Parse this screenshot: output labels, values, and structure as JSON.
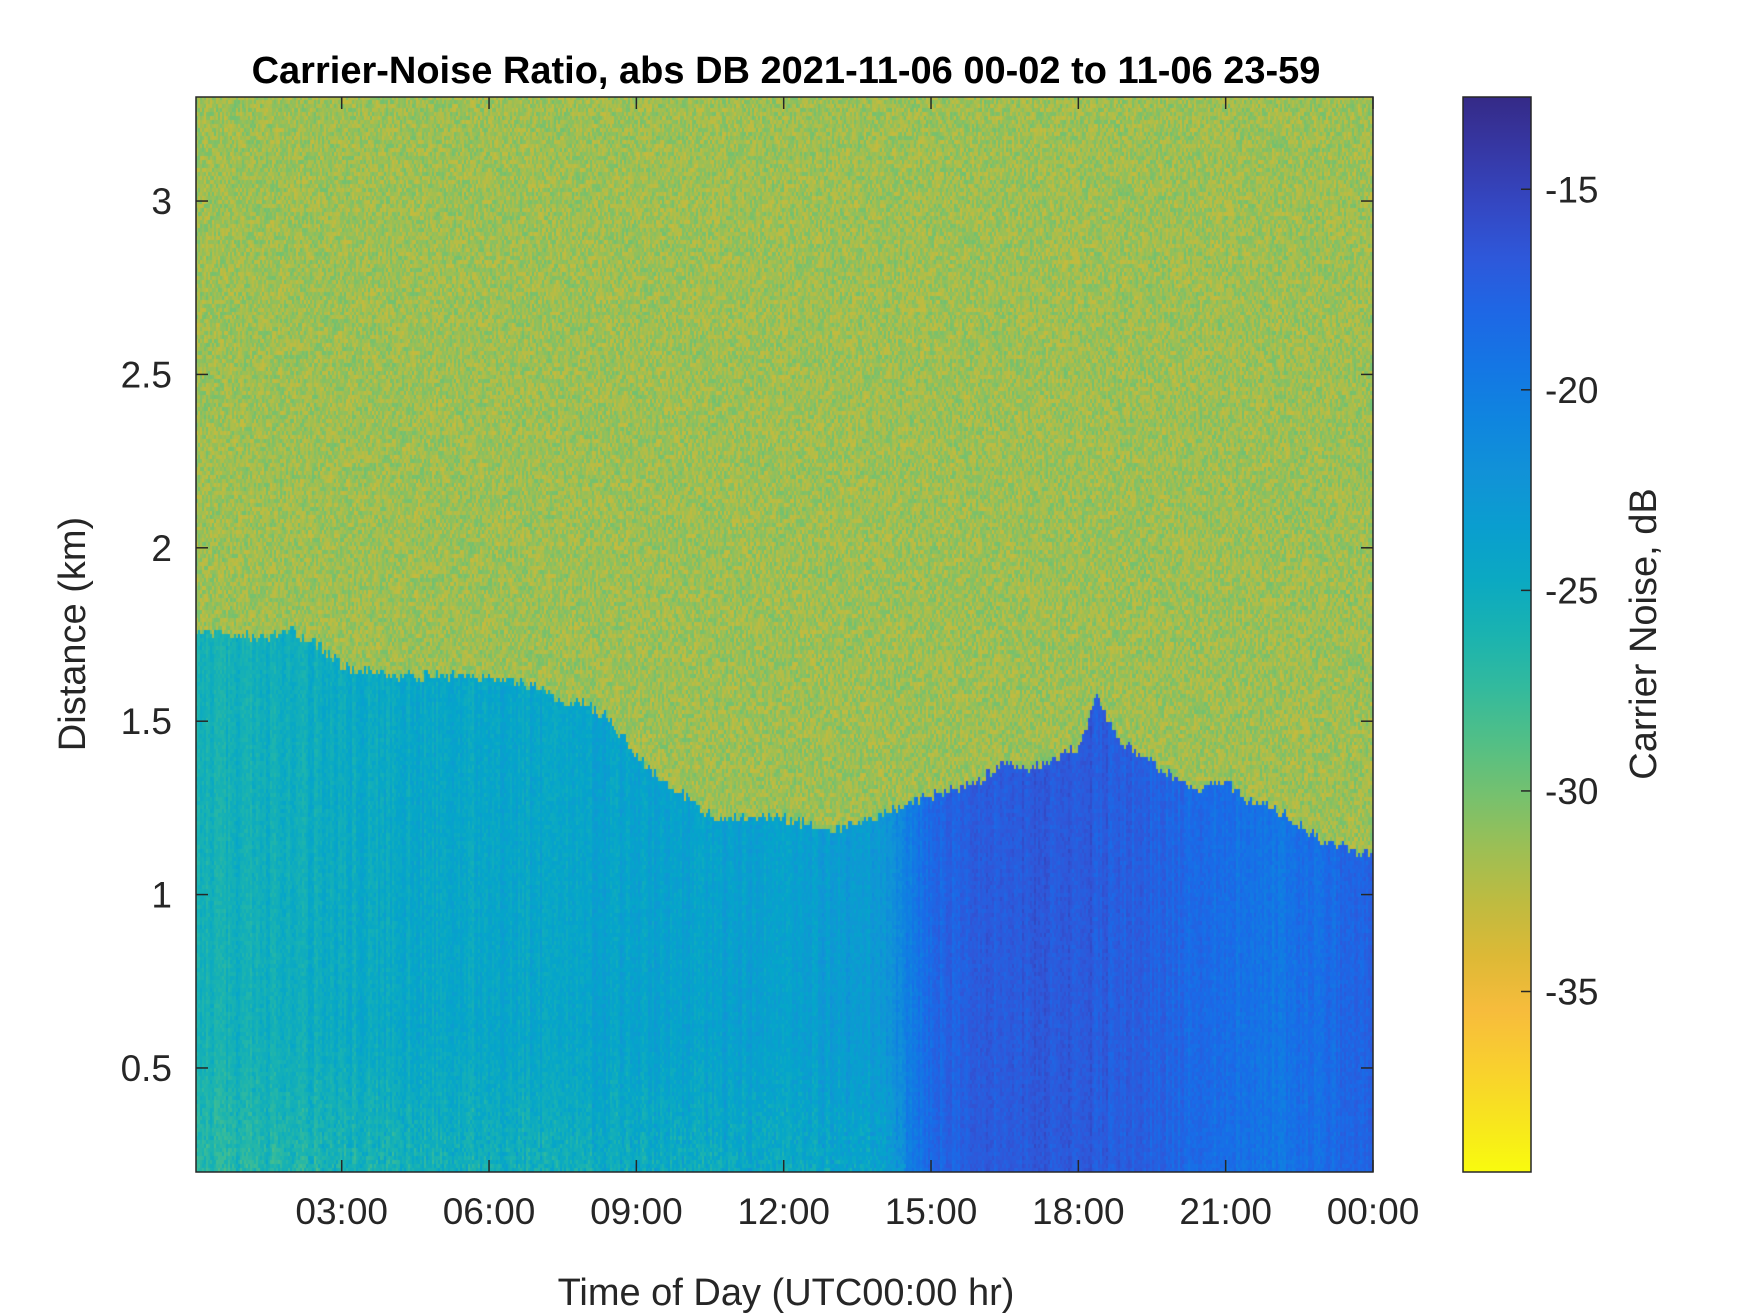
{
  "chart_data": {
    "type": "heatmap",
    "title": "Carrier-Noise Ratio, abs DB 2021-11-06 00-02 to 11-06 23-59",
    "xlabel": "Time of Day (UTC00:00 hr)",
    "ylabel": "Distance (km)",
    "colorbar_label": "Carrier Noise, dB",
    "x_unit": "hours",
    "xlim": [
      0.033,
      24.0
    ],
    "ylim": [
      0.2,
      3.3
    ],
    "clim": [
      -39.5,
      -12.7
    ],
    "colormap": "parula",
    "colormap_reversed": true,
    "x_ticks": [
      3,
      6,
      9,
      12,
      15,
      18,
      21,
      24
    ],
    "x_tick_labels": [
      "03:00",
      "06:00",
      "09:00",
      "12:00",
      "15:00",
      "18:00",
      "21:00",
      "00:00"
    ],
    "y_ticks": [
      0.5,
      1,
      1.5,
      2,
      2.5,
      3
    ],
    "y_tick_labels": [
      "0.5",
      "1",
      "1.5",
      "2",
      "2.5",
      "3"
    ],
    "c_ticks": [
      -15,
      -20,
      -25,
      -30,
      -35
    ],
    "c_tick_labels": [
      "-15",
      "-20",
      "-25",
      "-30",
      "-35"
    ],
    "background_level_db": -31.5,
    "signal_top_km": [
      {
        "x": 0.03,
        "y": 1.75
      },
      {
        "x": 1.0,
        "y": 1.75
      },
      {
        "x": 1.5,
        "y": 1.74
      },
      {
        "x": 2.0,
        "y": 1.76
      },
      {
        "x": 2.5,
        "y": 1.72
      },
      {
        "x": 3.0,
        "y": 1.66
      },
      {
        "x": 4.0,
        "y": 1.63
      },
      {
        "x": 5.0,
        "y": 1.63
      },
      {
        "x": 6.0,
        "y": 1.62
      },
      {
        "x": 7.0,
        "y": 1.6
      },
      {
        "x": 7.5,
        "y": 1.55
      },
      {
        "x": 8.0,
        "y": 1.55
      },
      {
        "x": 8.5,
        "y": 1.5
      },
      {
        "x": 9.0,
        "y": 1.4
      },
      {
        "x": 9.5,
        "y": 1.33
      },
      {
        "x": 10.0,
        "y": 1.28
      },
      {
        "x": 10.5,
        "y": 1.23
      },
      {
        "x": 11.0,
        "y": 1.22
      },
      {
        "x": 12.0,
        "y": 1.22
      },
      {
        "x": 13.0,
        "y": 1.18
      },
      {
        "x": 14.0,
        "y": 1.23
      },
      {
        "x": 15.0,
        "y": 1.28
      },
      {
        "x": 16.0,
        "y": 1.33
      },
      {
        "x": 16.5,
        "y": 1.38
      },
      {
        "x": 17.0,
        "y": 1.36
      },
      {
        "x": 17.5,
        "y": 1.38
      },
      {
        "x": 18.0,
        "y": 1.42
      },
      {
        "x": 18.4,
        "y": 1.57
      },
      {
        "x": 18.8,
        "y": 1.45
      },
      {
        "x": 19.5,
        "y": 1.38
      },
      {
        "x": 20.0,
        "y": 1.33
      },
      {
        "x": 20.5,
        "y": 1.3
      },
      {
        "x": 21.0,
        "y": 1.32
      },
      {
        "x": 21.5,
        "y": 1.27
      },
      {
        "x": 22.0,
        "y": 1.25
      },
      {
        "x": 22.5,
        "y": 1.2
      },
      {
        "x": 23.0,
        "y": 1.15
      },
      {
        "x": 23.5,
        "y": 1.13
      },
      {
        "x": 24.0,
        "y": 1.12
      }
    ],
    "signal_level_db": [
      {
        "x": 0.03,
        "y": -25.8
      },
      {
        "x": 3.0,
        "y": -24.8
      },
      {
        "x": 6.0,
        "y": -24.3
      },
      {
        "x": 9.0,
        "y": -23.8
      },
      {
        "x": 12.0,
        "y": -23.5
      },
      {
        "x": 14.0,
        "y": -22.8
      },
      {
        "x": 15.0,
        "y": -18.2
      },
      {
        "x": 16.0,
        "y": -17.0
      },
      {
        "x": 18.0,
        "y": -16.6
      },
      {
        "x": 20.0,
        "y": -18.0
      },
      {
        "x": 22.0,
        "y": -19.5
      },
      {
        "x": 24.0,
        "y": -17.5
      }
    ]
  }
}
